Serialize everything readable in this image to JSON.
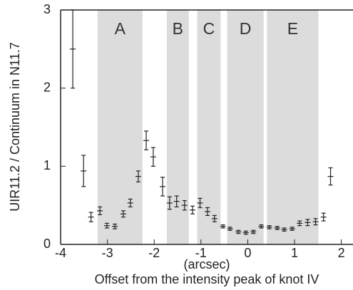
{
  "chart_data": {
    "type": "errorbar",
    "ylabel": "UIR11.2 / Continuum in N11.7",
    "xlabel": [
      "(arcsec)",
      "Offset from the intensity peak of knot IV"
    ],
    "xlim": [
      -4,
      2.25
    ],
    "ylim": [
      0,
      3
    ],
    "xticks": [
      -4,
      -3,
      -2,
      -1,
      0,
      1,
      2
    ],
    "yticks": [
      0,
      1,
      2,
      3
    ],
    "color": "#222222",
    "region_color": "#dcdcdc",
    "regions": [
      {
        "label": "A",
        "start": -3.21,
        "end": -2.25
      },
      {
        "label": "B",
        "start": -1.73,
        "end": -1.26
      },
      {
        "label": "C",
        "start": -1.08,
        "end": -0.58
      },
      {
        "label": "D",
        "start": -0.44,
        "end": 0.34
      },
      {
        "label": "E",
        "start": 0.41,
        "end": 1.51
      }
    ],
    "x": [
      -3.74,
      -3.51,
      -3.35,
      -3.16,
      -3.01,
      -2.84,
      -2.66,
      -2.51,
      -2.34,
      -2.17,
      -2.02,
      -1.82,
      -1.67,
      -1.52,
      -1.35,
      -1.18,
      -1.02,
      -0.86,
      -0.71,
      -0.53,
      -0.38,
      -0.2,
      -0.04,
      0.12,
      0.29,
      0.46,
      0.63,
      0.78,
      0.95,
      1.11,
      1.28,
      1.45,
      1.62,
      1.77
    ],
    "values": [
      2.5,
      0.94,
      0.35,
      0.43,
      0.24,
      0.23,
      0.39,
      0.53,
      0.87,
      1.33,
      1.12,
      0.74,
      0.53,
      0.55,
      0.5,
      0.44,
      0.53,
      0.42,
      0.33,
      0.23,
      0.2,
      0.16,
      0.15,
      0.16,
      0.23,
      0.22,
      0.21,
      0.19,
      0.2,
      0.27,
      0.28,
      0.29,
      0.35,
      0.87
    ],
    "errors": [
      0.5,
      0.2,
      0.06,
      0.05,
      0.03,
      0.03,
      0.04,
      0.05,
      0.07,
      0.12,
      0.12,
      0.12,
      0.08,
      0.07,
      0.06,
      0.05,
      0.06,
      0.05,
      0.04,
      0.02,
      0.02,
      0.02,
      0.02,
      0.02,
      0.02,
      0.02,
      0.02,
      0.02,
      0.02,
      0.03,
      0.04,
      0.04,
      0.05,
      0.11
    ]
  }
}
